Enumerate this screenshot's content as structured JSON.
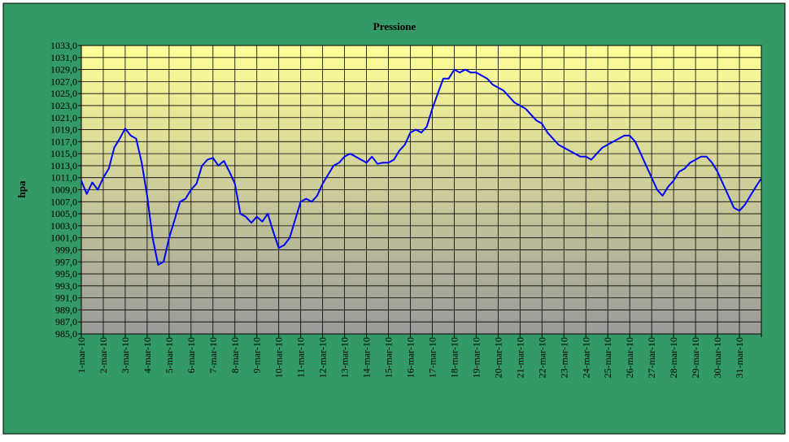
{
  "chart_data": {
    "type": "line",
    "title": "Pressione",
    "xlabel": "",
    "ylabel": "hpa",
    "ylim": [
      985,
      1033
    ],
    "y_tick_step": 2,
    "y_tick_labels": [
      "985,0",
      "987,0",
      "989,0",
      "991,0",
      "993,0",
      "995,0",
      "997,0",
      "999,0",
      "1001,0",
      "1003,0",
      "1005,0",
      "1007,0",
      "1009,0",
      "1011,0",
      "1013,0",
      "1015,0",
      "1017,0",
      "1019,0",
      "1021,0",
      "1023,0",
      "1025,0",
      "1027,0",
      "1029,0",
      "1031,0",
      "1033,0"
    ],
    "x_tick_labels": [
      "1-mar-10",
      "2-mar-10",
      "3-mar-10",
      "4-mar-10",
      "5-mar-10",
      "6-mar-10",
      "7-mar-10",
      "8-mar-10",
      "9-mar-10",
      "10-mar-10",
      "11-mar-10",
      "12-mar-10",
      "13-mar-10",
      "14-mar-10",
      "15-mar-10",
      "16-mar-10",
      "17-mar-10",
      "18-mar-10",
      "19-mar-10",
      "20-mar-10",
      "21-mar-10",
      "22-mar-10",
      "23-mar-10",
      "24-mar-10",
      "25-mar-10",
      "26-mar-10",
      "27-mar-10",
      "28-mar-10",
      "29-mar-10",
      "30-mar-10",
      "31-mar-10"
    ],
    "grid": true,
    "legend": "none",
    "series": [
      {
        "color": "#0000ff",
        "x": [
          "1-mar 00:00",
          "1-mar 06:00",
          "1-mar 12:00",
          "1-mar 18:00",
          "2-mar 00:00",
          "2-mar 06:00",
          "2-mar 12:00",
          "2-mar 18:00",
          "3-mar 00:00",
          "3-mar 06:00",
          "3-mar 12:00",
          "3-mar 18:00",
          "4-mar 00:00",
          "4-mar 06:00",
          "4-mar 12:00",
          "4-mar 18:00",
          "5-mar 00:00",
          "5-mar 06:00",
          "5-mar 12:00",
          "5-mar 18:00",
          "6-mar 00:00",
          "6-mar 06:00",
          "6-mar 12:00",
          "6-mar 18:00",
          "7-mar 00:00",
          "7-mar 06:00",
          "7-mar 12:00",
          "7-mar 18:00",
          "8-mar 00:00",
          "8-mar 06:00",
          "8-mar 12:00",
          "8-mar 18:00",
          "9-mar 00:00",
          "9-mar 06:00",
          "9-mar 12:00",
          "9-mar 18:00",
          "10-mar 00:00",
          "10-mar 06:00",
          "10-mar 12:00",
          "10-mar 18:00",
          "11-mar 00:00",
          "11-mar 06:00",
          "11-mar 12:00",
          "11-mar 18:00",
          "12-mar 00:00",
          "12-mar 06:00",
          "12-mar 12:00",
          "12-mar 18:00",
          "13-mar 00:00",
          "13-mar 06:00",
          "13-mar 12:00",
          "13-mar 18:00",
          "14-mar 00:00",
          "14-mar 06:00",
          "14-mar 12:00",
          "14-mar 18:00",
          "15-mar 00:00",
          "15-mar 06:00",
          "15-mar 12:00",
          "15-mar 18:00",
          "16-mar 00:00",
          "16-mar 06:00",
          "16-mar 12:00",
          "16-mar 18:00",
          "17-mar 00:00",
          "17-mar 06:00",
          "17-mar 12:00",
          "17-mar 18:00",
          "18-mar 00:00",
          "18-mar 06:00",
          "18-mar 12:00",
          "18-mar 18:00",
          "19-mar 00:00",
          "19-mar 06:00",
          "19-mar 12:00",
          "19-mar 18:00",
          "20-mar 00:00",
          "20-mar 06:00",
          "20-mar 12:00",
          "20-mar 18:00",
          "21-mar 00:00",
          "21-mar 06:00",
          "21-mar 12:00",
          "21-mar 18:00",
          "22-mar 00:00",
          "22-mar 06:00",
          "22-mar 12:00",
          "22-mar 18:00",
          "23-mar 00:00",
          "23-mar 06:00",
          "23-mar 12:00",
          "23-mar 18:00",
          "24-mar 00:00",
          "24-mar 06:00",
          "24-mar 12:00",
          "24-mar 18:00",
          "25-mar 00:00",
          "25-mar 06:00",
          "25-mar 12:00",
          "25-mar 18:00",
          "26-mar 00:00",
          "26-mar 06:00",
          "26-mar 12:00",
          "26-mar 18:00",
          "27-mar 00:00",
          "27-mar 06:00",
          "27-mar 12:00",
          "27-mar 18:00",
          "28-mar 00:00",
          "28-mar 06:00",
          "28-mar 12:00",
          "28-mar 18:00",
          "29-mar 00:00",
          "29-mar 06:00",
          "29-mar 12:00",
          "29-mar 18:00",
          "30-mar 00:00",
          "30-mar 06:00",
          "30-mar 12:00",
          "30-mar 18:00",
          "31-mar 00:00",
          "31-mar 06:00",
          "31-mar 12:00",
          "31-mar 18:00",
          "1-apr 00:00"
        ],
        "y": [
          1010.5,
          1008.3,
          1010.2,
          1009.0,
          1011.0,
          1012.5,
          1016.0,
          1017.5,
          1019.2,
          1018.0,
          1017.5,
          1013.5,
          1008.0,
          1001.0,
          996.5,
          997.0,
          1001.0,
          1004.0,
          1007.0,
          1007.5,
          1009.0,
          1010.0,
          1013.0,
          1014.0,
          1014.3,
          1013.0,
          1013.8,
          1012.0,
          1010.0,
          1005.0,
          1004.5,
          1003.5,
          1004.5,
          1003.7,
          1005.0,
          1002.0,
          999.3,
          999.8,
          1001.0,
          1004.0,
          1007.0,
          1007.5,
          1007.0,
          1008.0,
          1010.0,
          1011.5,
          1013.0,
          1013.5,
          1014.5,
          1015.0,
          1014.5,
          1014.0,
          1013.5,
          1014.5,
          1013.3,
          1013.5,
          1013.5,
          1014.0,
          1015.5,
          1016.5,
          1018.5,
          1019.0,
          1018.5,
          1019.5,
          1022.5,
          1025.0,
          1027.5,
          1027.5,
          1029.0,
          1028.5,
          1029.0,
          1028.5,
          1028.5,
          1028.0,
          1027.5,
          1026.5,
          1026.0,
          1025.5,
          1024.5,
          1023.5,
          1023.0,
          1022.5,
          1021.5,
          1020.5,
          1020.0,
          1018.5,
          1017.5,
          1016.5,
          1016.0,
          1015.5,
          1015.0,
          1014.5,
          1014.5,
          1014.0,
          1015.0,
          1016.0,
          1016.5,
          1017.0,
          1017.5,
          1018.0,
          1018.0,
          1017.0,
          1015.0,
          1013.0,
          1011.0,
          1009.0,
          1008.0,
          1009.5,
          1010.5,
          1012.0,
          1012.5,
          1013.5,
          1014.0,
          1014.5,
          1014.5,
          1013.5,
          1012.0,
          1010.0,
          1008.0,
          1006.0,
          1005.5,
          1006.5,
          1008.0,
          1009.5,
          1010.8
        ]
      }
    ]
  }
}
